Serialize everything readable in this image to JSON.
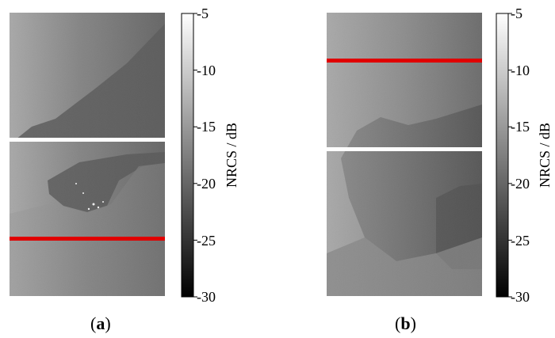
{
  "panels": [
    {
      "id": "a",
      "caption_letter": "a",
      "lines": [
        {
          "color": "#ffffff",
          "label": "white-transect"
        },
        {
          "color": "#e00000",
          "label": "red-transect"
        }
      ]
    },
    {
      "id": "b",
      "caption_letter": "b",
      "lines": [
        {
          "color": "#e00000",
          "label": "red-transect"
        },
        {
          "color": "#ffffff",
          "label": "white-transect"
        }
      ]
    }
  ],
  "colorbar": {
    "label": "NRCS / dB",
    "min": -30,
    "max": -5,
    "ticks": [
      "-5",
      "-10",
      "-15",
      "-20",
      "-25",
      "-30"
    ],
    "colormap": [
      "#000000",
      "#ffffff"
    ]
  },
  "colors": {
    "red_line": "#e00000",
    "white_line": "#ffffff"
  }
}
